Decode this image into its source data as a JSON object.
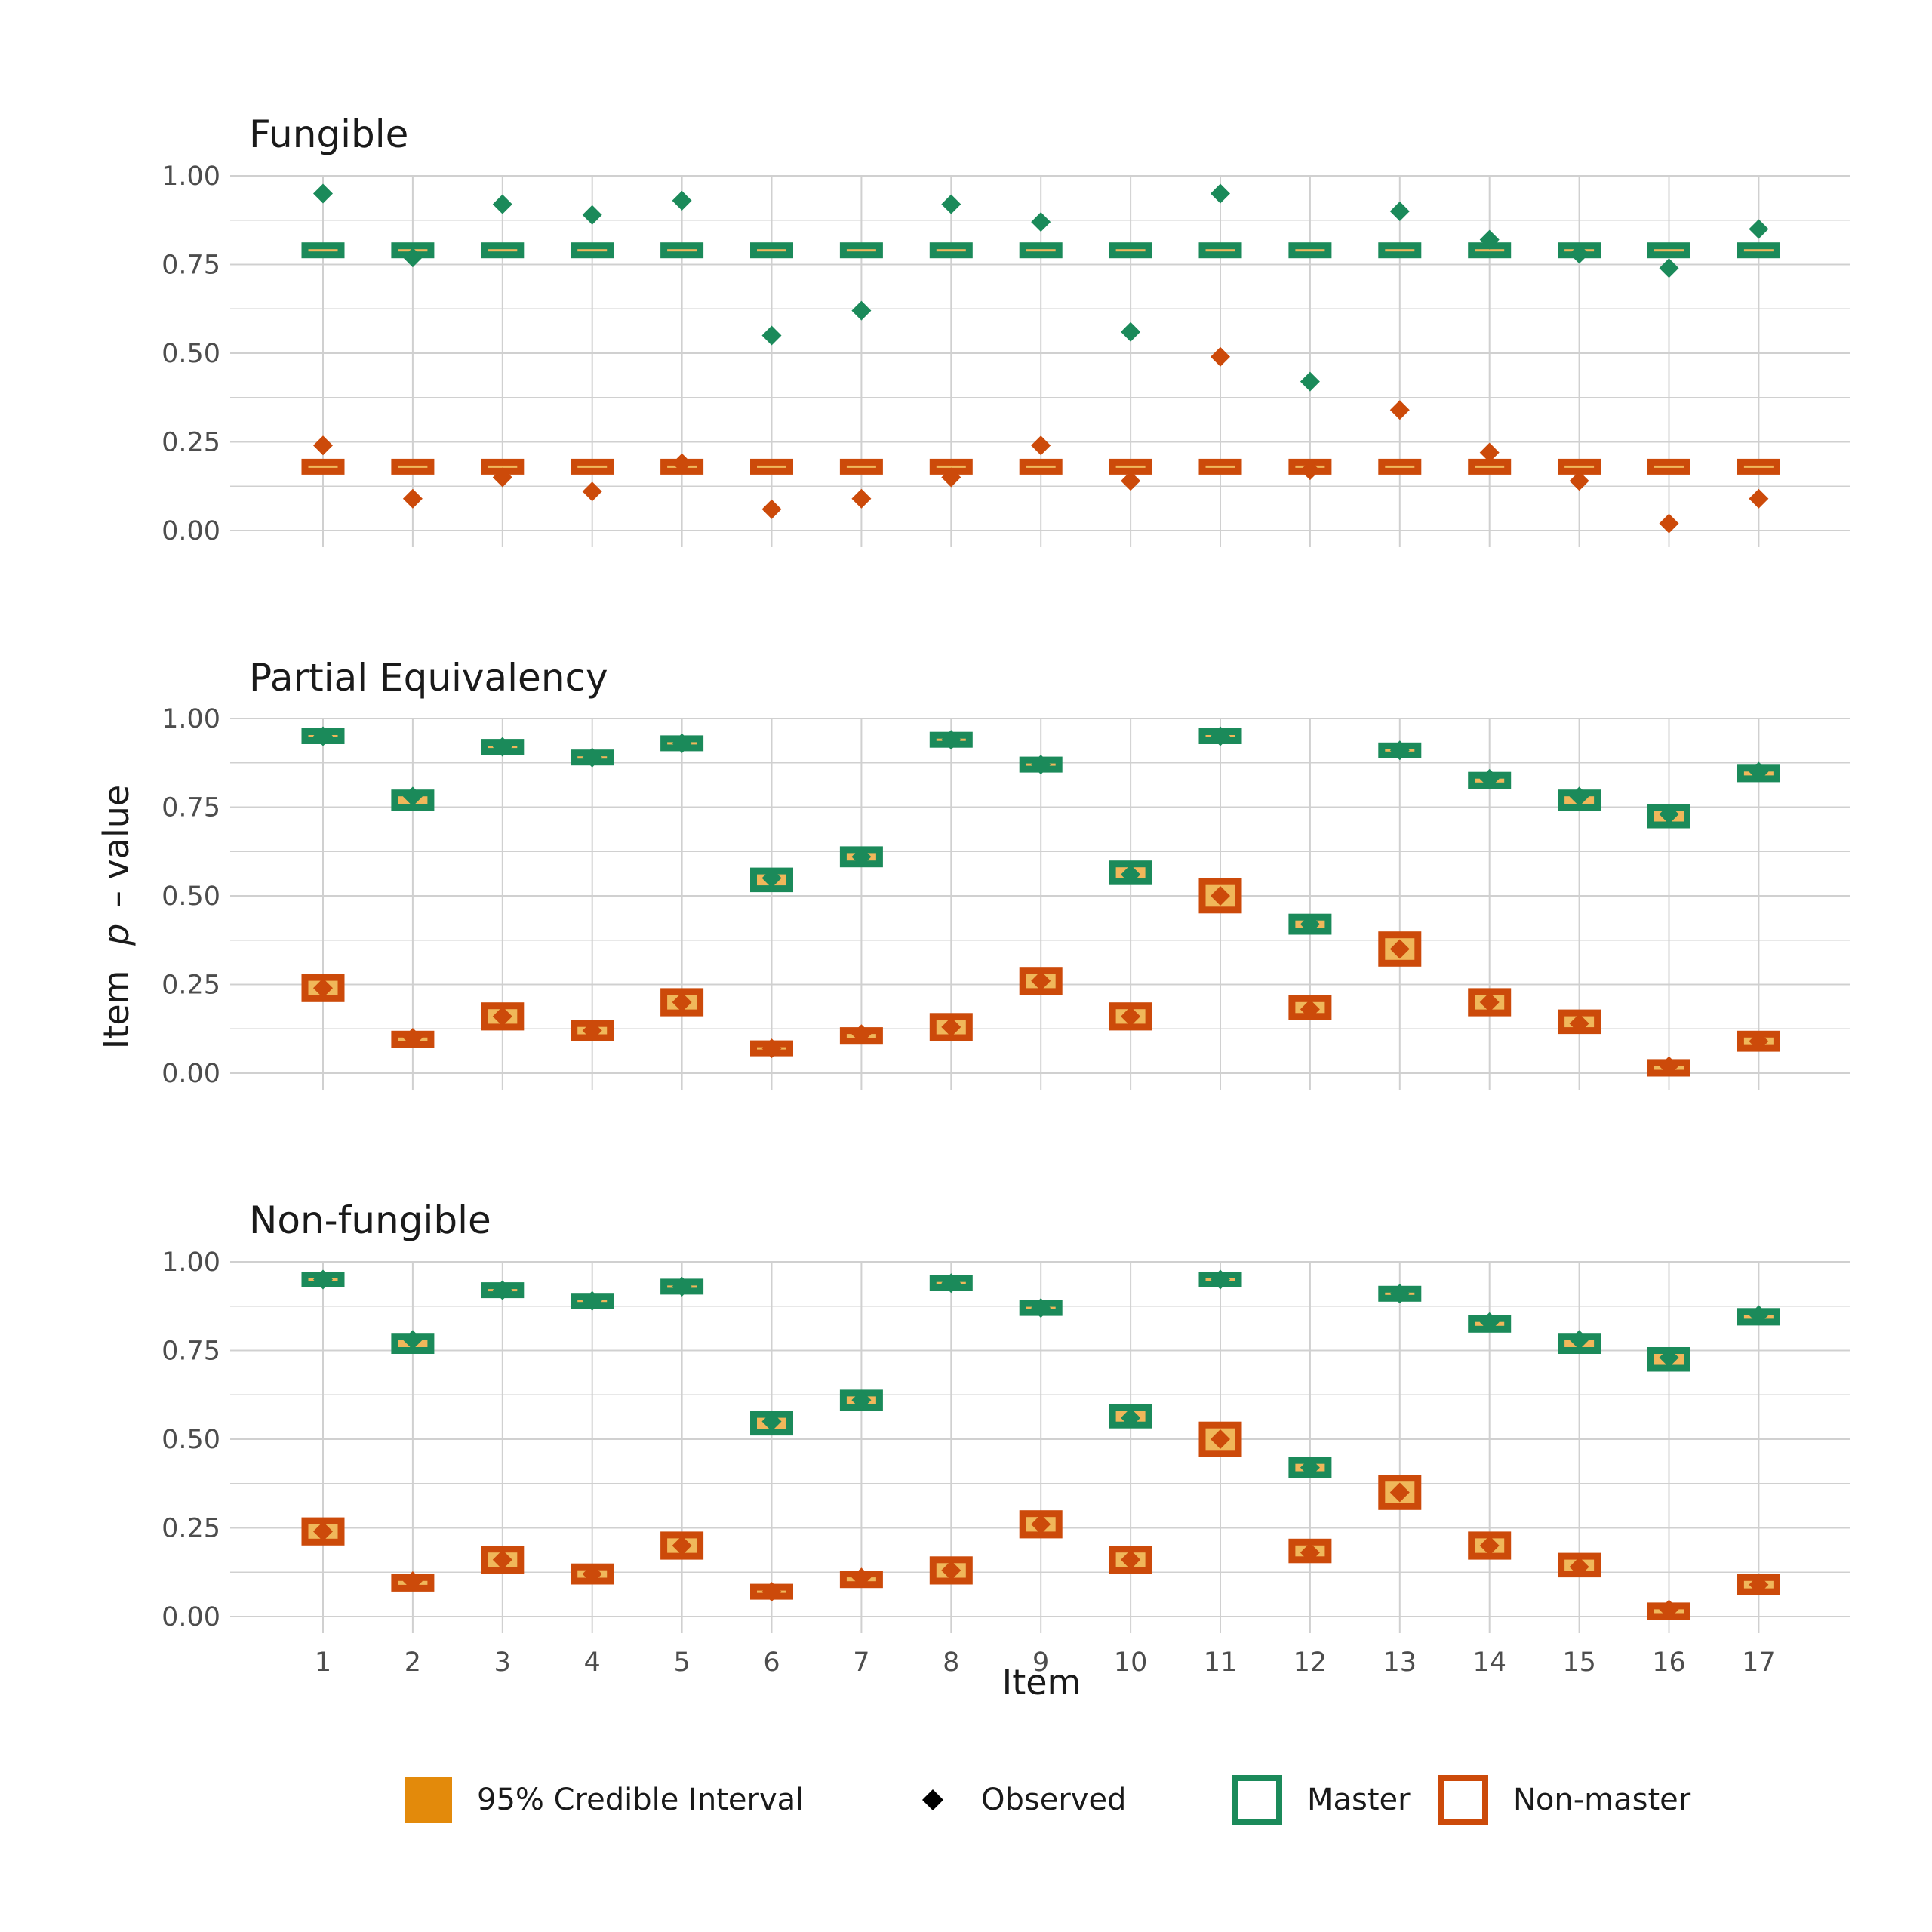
{
  "colors": {
    "master": "#1b8a5a",
    "nonmaster": "#cc4a0a",
    "interval_fill": "#f0b75a",
    "legend_interval": "#e38a0b",
    "observed_legend": "#000000",
    "grid": "#d0d0d0"
  },
  "chart_data": {
    "type": "scatter",
    "x": [
      1,
      2,
      3,
      4,
      5,
      6,
      7,
      8,
      9,
      10,
      11,
      12,
      13,
      14,
      15,
      16,
      17
    ],
    "xlabel": "Item",
    "ylabel_prefix": "Item",
    "ylabel_italic": "p",
    "ylabel_suffix": "– value",
    "ylim": [
      0,
      1
    ],
    "yticks": [
      "0.00",
      "0.25",
      "0.50",
      "0.75",
      "1.00"
    ],
    "legend": {
      "position": "bottom",
      "entries": [
        "95% Credible Interval",
        "Observed",
        "Master",
        "Non-master"
      ]
    },
    "panels": [
      {
        "title": "Fungible",
        "series": [
          {
            "name": "Master",
            "observed": [
              0.95,
              0.77,
              0.92,
              0.89,
              0.93,
              0.55,
              0.62,
              0.92,
              0.87,
              0.56,
              0.95,
              0.42,
              0.9,
              0.82,
              0.78,
              0.74,
              0.85
            ],
            "interval_low": [
              0.78,
              0.78,
              0.78,
              0.78,
              0.78,
              0.78,
              0.78,
              0.78,
              0.78,
              0.78,
              0.78,
              0.78,
              0.78,
              0.78,
              0.78,
              0.78,
              0.78
            ],
            "interval_high": [
              0.8,
              0.8,
              0.8,
              0.8,
              0.8,
              0.8,
              0.8,
              0.8,
              0.8,
              0.8,
              0.8,
              0.8,
              0.8,
              0.8,
              0.8,
              0.8,
              0.8
            ]
          },
          {
            "name": "Non-master",
            "observed": [
              0.24,
              0.09,
              0.15,
              0.11,
              0.19,
              0.06,
              0.09,
              0.15,
              0.24,
              0.14,
              0.49,
              0.17,
              0.34,
              0.22,
              0.14,
              0.02,
              0.09
            ],
            "interval_low": [
              0.17,
              0.17,
              0.17,
              0.17,
              0.17,
              0.17,
              0.17,
              0.17,
              0.17,
              0.17,
              0.17,
              0.17,
              0.17,
              0.17,
              0.17,
              0.17,
              0.17
            ],
            "interval_high": [
              0.19,
              0.19,
              0.19,
              0.19,
              0.19,
              0.19,
              0.19,
              0.19,
              0.19,
              0.19,
              0.19,
              0.19,
              0.19,
              0.19,
              0.19,
              0.19,
              0.19
            ]
          }
        ]
      },
      {
        "title": "Partial Equivalency",
        "series": [
          {
            "name": "Master",
            "observed": [
              0.95,
              0.78,
              0.92,
              0.89,
              0.93,
              0.55,
              0.61,
              0.94,
              0.87,
              0.56,
              0.95,
              0.42,
              0.91,
              0.83,
              0.78,
              0.73,
              0.85
            ],
            "interval_low": [
              0.94,
              0.75,
              0.91,
              0.88,
              0.92,
              0.52,
              0.59,
              0.93,
              0.86,
              0.54,
              0.94,
              0.4,
              0.9,
              0.81,
              0.75,
              0.7,
              0.83
            ],
            "interval_high": [
              0.96,
              0.79,
              0.93,
              0.9,
              0.94,
              0.57,
              0.63,
              0.95,
              0.88,
              0.59,
              0.96,
              0.44,
              0.92,
              0.84,
              0.79,
              0.75,
              0.86
            ]
          },
          {
            "name": "Non-master",
            "observed": [
              0.24,
              0.1,
              0.16,
              0.12,
              0.2,
              0.07,
              0.11,
              0.13,
              0.26,
              0.16,
              0.5,
              0.18,
              0.35,
              0.2,
              0.14,
              0.02,
              0.09
            ],
            "interval_low": [
              0.21,
              0.08,
              0.13,
              0.1,
              0.17,
              0.06,
              0.09,
              0.1,
              0.23,
              0.13,
              0.46,
              0.16,
              0.31,
              0.17,
              0.12,
              0.0,
              0.07
            ],
            "interval_high": [
              0.27,
              0.11,
              0.19,
              0.14,
              0.23,
              0.08,
              0.12,
              0.16,
              0.29,
              0.19,
              0.54,
              0.21,
              0.39,
              0.23,
              0.17,
              0.03,
              0.11
            ]
          }
        ]
      },
      {
        "title": "Non-fungible",
        "series": [
          {
            "name": "Master",
            "observed": [
              0.95,
              0.78,
              0.92,
              0.89,
              0.93,
              0.55,
              0.61,
              0.94,
              0.87,
              0.56,
              0.95,
              0.42,
              0.91,
              0.83,
              0.78,
              0.73,
              0.85
            ],
            "interval_low": [
              0.94,
              0.75,
              0.91,
              0.88,
              0.92,
              0.52,
              0.59,
              0.93,
              0.86,
              0.54,
              0.94,
              0.4,
              0.9,
              0.81,
              0.75,
              0.7,
              0.83
            ],
            "interval_high": [
              0.96,
              0.79,
              0.93,
              0.9,
              0.94,
              0.57,
              0.63,
              0.95,
              0.88,
              0.59,
              0.96,
              0.44,
              0.92,
              0.84,
              0.79,
              0.75,
              0.86
            ]
          },
          {
            "name": "Non-master",
            "observed": [
              0.24,
              0.1,
              0.16,
              0.12,
              0.2,
              0.07,
              0.11,
              0.13,
              0.26,
              0.16,
              0.5,
              0.18,
              0.35,
              0.2,
              0.14,
              0.02,
              0.09
            ],
            "interval_low": [
              0.21,
              0.08,
              0.13,
              0.1,
              0.17,
              0.06,
              0.09,
              0.1,
              0.23,
              0.13,
              0.46,
              0.16,
              0.31,
              0.17,
              0.12,
              0.0,
              0.07
            ],
            "interval_high": [
              0.27,
              0.11,
              0.19,
              0.14,
              0.23,
              0.08,
              0.12,
              0.16,
              0.29,
              0.19,
              0.54,
              0.21,
              0.39,
              0.23,
              0.17,
              0.03,
              0.11
            ]
          }
        ]
      }
    ]
  }
}
